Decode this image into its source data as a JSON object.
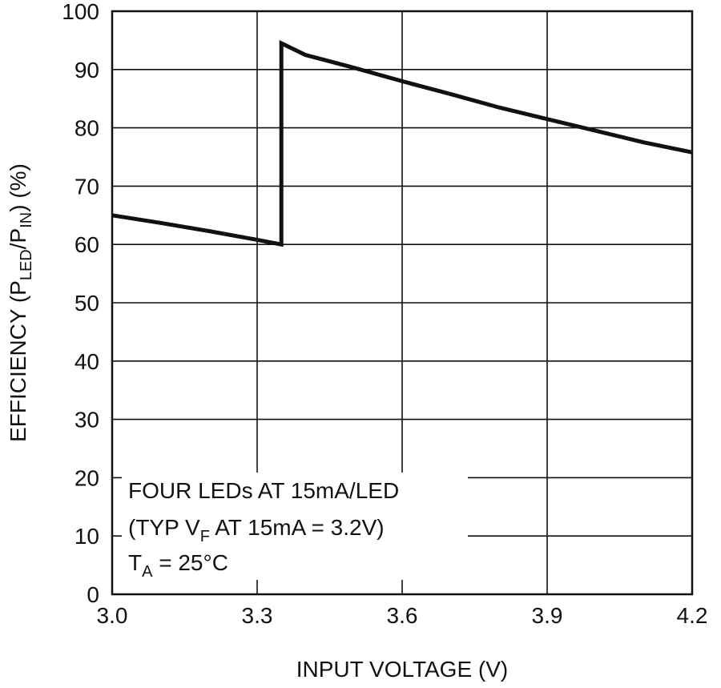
{
  "chart_data": {
    "type": "line",
    "xlabel": "INPUT VOLTAGE (V)",
    "ylabel": {
      "prefix": "EFFICIENCY (P",
      "sub1": "LED",
      "mid": "/P",
      "sub2": "IN",
      "suffix": ") (%)"
    },
    "xlim": [
      3.0,
      4.2
    ],
    "ylim": [
      0,
      100
    ],
    "x_ticks": [
      "3.0",
      "3.3",
      "3.6",
      "3.9",
      "4.2"
    ],
    "x_tick_values": [
      3.0,
      3.3,
      3.6,
      3.9,
      4.2
    ],
    "y_ticks": [
      "0",
      "10",
      "20",
      "30",
      "40",
      "50",
      "60",
      "70",
      "80",
      "90",
      "100"
    ],
    "y_tick_values": [
      0,
      10,
      20,
      30,
      40,
      50,
      60,
      70,
      80,
      90,
      100
    ],
    "grid": true,
    "series": [
      {
        "x": [
          3.0,
          3.1,
          3.2,
          3.3,
          3.35,
          3.35,
          3.4,
          3.5,
          3.6,
          3.7,
          3.8,
          3.9,
          4.0,
          4.1,
          4.2
        ],
        "y": [
          65.0,
          63.7,
          62.3,
          60.8,
          60.0,
          94.5,
          92.5,
          90.3,
          88.0,
          85.8,
          83.5,
          81.5,
          79.5,
          77.5,
          75.8
        ]
      }
    ],
    "annotation": {
      "line1": "FOUR LEDs AT 15mA/LED",
      "line2_prefix": "(TYP V",
      "line2_sub": "F",
      "line2_suffix": " AT 15mA = 3.2V)",
      "line3_prefix": "T",
      "line3_sub": "A",
      "line3_suffix": " = 25°C"
    },
    "colors": {
      "line": "#111111",
      "grid": "#111111",
      "background": "#ffffff"
    }
  }
}
